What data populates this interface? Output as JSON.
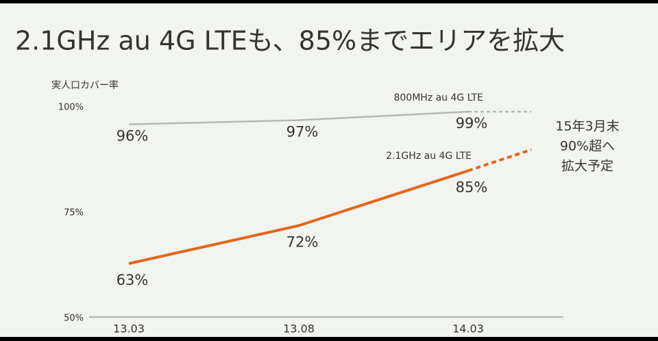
{
  "chart_data": {
    "type": "line",
    "title": "2.1GHz au 4G LTEも、85%までエリアを拡大",
    "y_label": "実人口カバー率",
    "categories": [
      "13.03",
      "13.08",
      "14.03",
      null
    ],
    "projected": [
      false,
      false,
      false,
      true
    ],
    "ylim": [
      50,
      100
    ],
    "yticks": [
      {
        "value": 50,
        "label": "50%"
      },
      {
        "value": 75,
        "label": "75%"
      },
      {
        "value": 100,
        "label": "100%"
      }
    ],
    "series": [
      {
        "name": "800MHz au 4G LTE",
        "color": "#b4b7b4",
        "label_color": "#333333",
        "values": [
          96,
          97,
          99,
          99
        ],
        "value_labels": [
          "96%",
          "97%",
          "99%",
          null
        ]
      },
      {
        "name": "2.1GHz au 4G LTE",
        "color": "#e2661a",
        "label_color": "#e2661a",
        "values": [
          63,
          72,
          85,
          90
        ],
        "value_labels": [
          "63%",
          "72%",
          "85%",
          null
        ]
      }
    ],
    "annotation": [
      "15年3月末",
      "90%超へ",
      "拡大予定"
    ]
  }
}
